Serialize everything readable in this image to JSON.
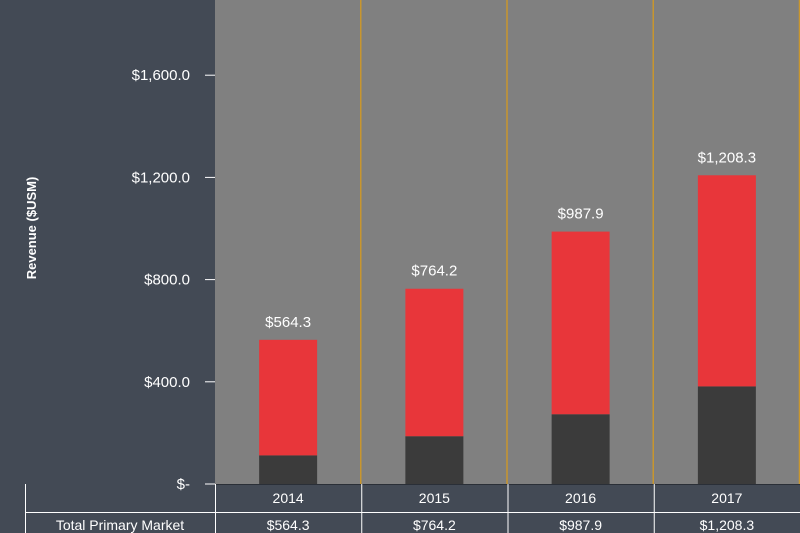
{
  "chart_data": {
    "type": "bar",
    "stacked": true,
    "categories": [
      "2014",
      "2015",
      "2016",
      "2017"
    ],
    "series": [
      {
        "values": [
          112,
          187,
          273,
          382
        ],
        "color": "#3b3b3b"
      },
      {
        "values": [
          452.3,
          577.2,
          714.9,
          826.3
        ],
        "color": "#e8363a"
      }
    ],
    "totals": [
      "$564.3",
      "$764.2",
      "$987.9",
      "$1,208.3"
    ],
    "ylabel": "Revenue ($USM)",
    "yticks": [
      0,
      400,
      800,
      1200,
      1600
    ],
    "ytick_labels": [
      "$-",
      "$400.0",
      "$800.0",
      "$1,200.0",
      "$1,600.0"
    ],
    "ylim": [
      0,
      1900
    ],
    "plot_background": "#808080",
    "page_background": "#434a55",
    "divider_color": "#c8962e",
    "table": {
      "row_label": "Total Primary Market",
      "values": [
        "$564.3",
        "$764.2",
        "$987.9",
        "$1,208.3"
      ]
    }
  }
}
